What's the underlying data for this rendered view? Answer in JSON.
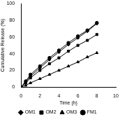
{
  "chart_data": {
    "type": "line",
    "x_label": "Time (h)",
    "y_label": "Cumulative Release (%)",
    "x": [
      0,
      0.5,
      1,
      2,
      3,
      4,
      5,
      6,
      7,
      8
    ],
    "series": [
      {
        "name": "OM1",
        "color": "#000000",
        "marker": "diamond",
        "line_style": "solid",
        "values": [
          0,
          6,
          13,
          23,
          33,
          42,
          51,
          59,
          67,
          76
        ]
      },
      {
        "name": "OM2",
        "color": "#000000",
        "marker": "square",
        "line_style": "solid",
        "values": [
          0,
          5,
          11,
          20,
          28,
          35,
          43,
          50,
          56,
          63
        ]
      },
      {
        "name": "OM3",
        "color": "#000000",
        "marker": "triangle",
        "line_style": "solid",
        "values": [
          0,
          2,
          5,
          10,
          15,
          20,
          25,
          30,
          36,
          41
        ]
      },
      {
        "name": "FM1",
        "color": "#000000",
        "marker": "circle",
        "line_style": "solid",
        "values": [
          0,
          7,
          15,
          25,
          35,
          44,
          53,
          61,
          68,
          77
        ]
      }
    ],
    "xlim": [
      0,
      10
    ],
    "xticks": [
      0,
      2,
      4,
      6,
      8,
      10
    ],
    "ylim": [
      0,
      100
    ],
    "yticks": [
      0,
      20,
      40,
      60,
      80,
      100
    ],
    "grid": false,
    "legend": "bottom"
  }
}
